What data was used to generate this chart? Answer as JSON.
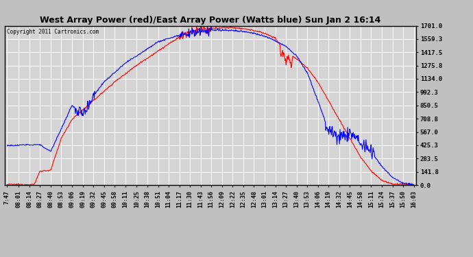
{
  "title": "West Array Power (red)/East Array Power (Watts blue) Sun Jan 2 16:14",
  "copyright": "Copyright 2011 Cartronics.com",
  "background_color": "#c0c0c0",
  "plot_bg_color": "#d4d4d4",
  "grid_color": "white",
  "yticks": [
    0.0,
    141.8,
    283.5,
    425.3,
    567.0,
    708.8,
    850.5,
    992.3,
    1134.0,
    1275.8,
    1417.5,
    1559.3,
    1701.0
  ],
  "ylim": [
    0,
    1701.0
  ],
  "xtick_labels": [
    "7:47",
    "08:01",
    "08:14",
    "08:27",
    "08:40",
    "08:53",
    "09:06",
    "09:19",
    "09:32",
    "09:45",
    "09:58",
    "10:11",
    "10:25",
    "10:38",
    "10:51",
    "11:04",
    "11:17",
    "11:30",
    "11:43",
    "11:56",
    "12:09",
    "12:22",
    "12:35",
    "12:48",
    "13:01",
    "13:14",
    "13:27",
    "13:40",
    "13:53",
    "14:06",
    "14:19",
    "14:32",
    "14:45",
    "14:58",
    "15:11",
    "15:24",
    "15:37",
    "15:50",
    "16:03"
  ],
  "red_line_color": "red",
  "blue_line_color": "blue",
  "line_width": 0.8
}
